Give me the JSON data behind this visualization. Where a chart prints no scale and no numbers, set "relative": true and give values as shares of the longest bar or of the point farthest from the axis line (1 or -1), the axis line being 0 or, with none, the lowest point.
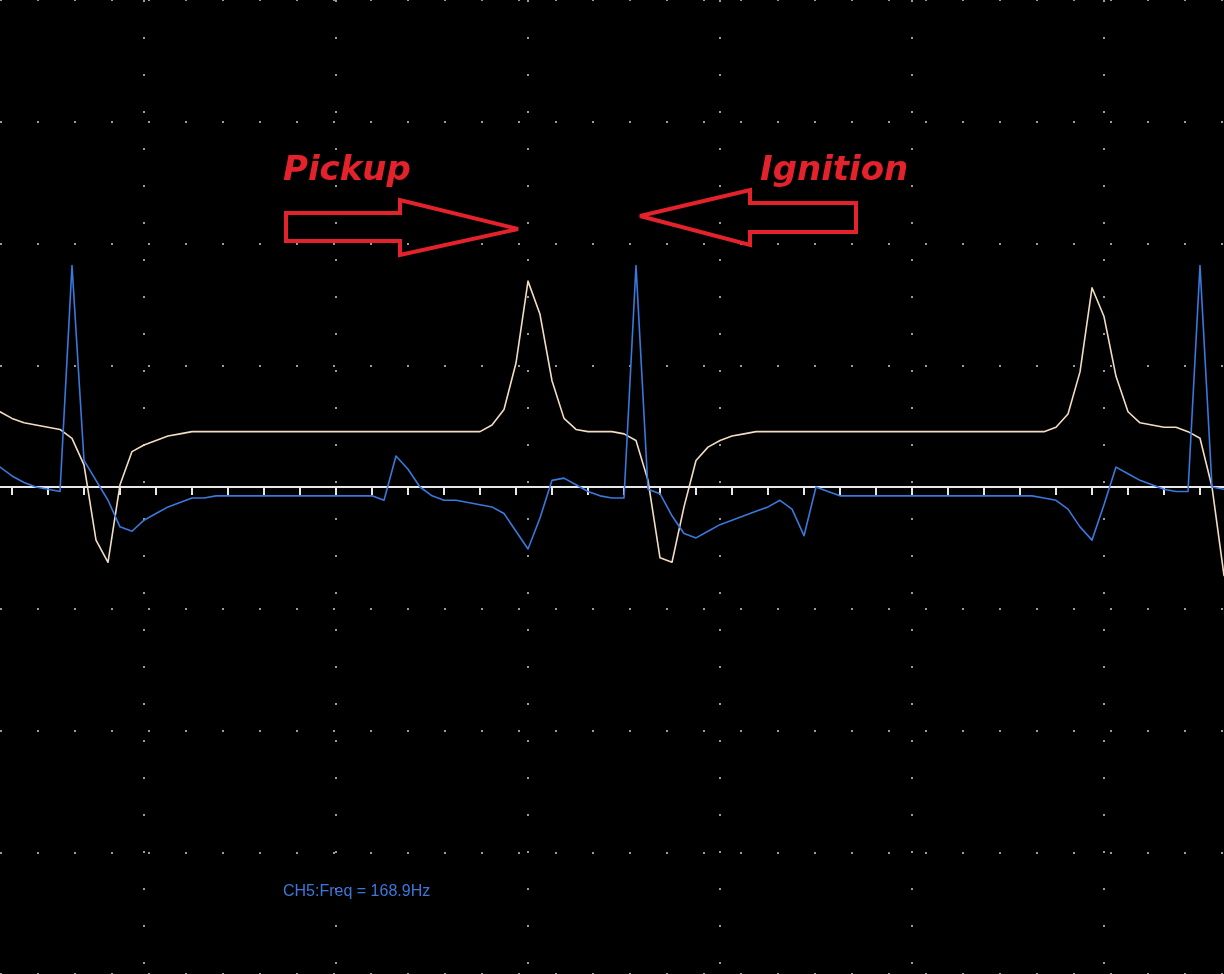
{
  "chart_data": {
    "type": "line",
    "relative": true,
    "grid": true,
    "categories": [
      null,
      null,
      null,
      null,
      null,
      null,
      null,
      null,
      null,
      null,
      null,
      null,
      null,
      null,
      null,
      null,
      null,
      null,
      null,
      null,
      null,
      null,
      null,
      null,
      null,
      null,
      null,
      null,
      null,
      null,
      null,
      null,
      null,
      null,
      null,
      null,
      null,
      null,
      null,
      null,
      null,
      null,
      null,
      null,
      null,
      null,
      null,
      null,
      null,
      null,
      null,
      null,
      null,
      null,
      null,
      null,
      null,
      null,
      null,
      null,
      null,
      null,
      null,
      null,
      null,
      null,
      null,
      null,
      null,
      null,
      null,
      null,
      null,
      null,
      null,
      null,
      null,
      null,
      null,
      null,
      null,
      null,
      null,
      null,
      null,
      null,
      null,
      null,
      null,
      null,
      null,
      null,
      null,
      null,
      null,
      null,
      null,
      null,
      null,
      null,
      null,
      null,
      null
    ],
    "series": [
      {
        "color": "#f2dcc4",
        "values": [
          0.34,
          0.31,
          0.29,
          0.28,
          0.27,
          0.26,
          0.22,
          0.1,
          -0.24,
          -0.34,
          0.01,
          0.16,
          0.19,
          0.21,
          0.23,
          0.24,
          0.25,
          0.25,
          0.25,
          0.25,
          0.25,
          0.25,
          0.25,
          0.25,
          0.25,
          0.25,
          0.25,
          0.25,
          0.25,
          0.25,
          0.25,
          0.25,
          0.25,
          0.25,
          0.25,
          0.25,
          0.25,
          0.25,
          0.25,
          0.25,
          0.25,
          0.28,
          0.35,
          0.56,
          0.93,
          0.78,
          0.48,
          0.31,
          0.26,
          0.25,
          0.25,
          0.25,
          0.24,
          0.21,
          0.03,
          -0.32,
          -0.34,
          -0.09,
          0.12,
          0.18,
          0.21,
          0.23,
          0.24,
          0.25,
          0.25,
          0.25,
          0.25,
          0.25,
          0.25,
          0.25,
          0.25,
          0.25,
          0.25,
          0.25,
          0.25,
          0.25,
          0.25,
          0.25,
          0.25,
          0.25,
          0.25,
          0.25,
          0.25,
          0.25,
          0.25,
          0.25,
          0.25,
          0.25,
          0.27,
          0.33,
          0.52,
          0.9,
          0.77,
          0.5,
          0.34,
          0.29,
          0.28,
          0.27,
          0.27,
          0.25,
          0.22,
          0.0,
          -0.4
        ]
      },
      {
        "color": "#3a78dc",
        "values": [
          0.09,
          0.05,
          0.02,
          0.0,
          -0.01,
          -0.02,
          1.0,
          0.12,
          0.03,
          -0.06,
          -0.18,
          -0.2,
          -0.15,
          -0.12,
          -0.09,
          -0.07,
          -0.05,
          -0.05,
          -0.04,
          -0.04,
          -0.04,
          -0.04,
          -0.04,
          -0.04,
          -0.04,
          -0.04,
          -0.04,
          -0.04,
          -0.04,
          -0.04,
          -0.04,
          -0.04,
          -0.06,
          0.14,
          0.08,
          0.0,
          -0.04,
          -0.06,
          -0.06,
          -0.07,
          -0.08,
          -0.09,
          -0.12,
          -0.2,
          -0.28,
          -0.14,
          0.03,
          0.04,
          0.01,
          -0.02,
          -0.04,
          -0.05,
          -0.05,
          1.0,
          -0.01,
          -0.03,
          -0.13,
          -0.21,
          -0.23,
          -0.2,
          -0.17,
          -0.15,
          -0.13,
          -0.11,
          -0.09,
          -0.06,
          -0.1,
          -0.22,
          0.0,
          -0.02,
          -0.04,
          -0.04,
          -0.04,
          -0.04,
          -0.04,
          -0.04,
          -0.04,
          -0.04,
          -0.04,
          -0.04,
          -0.04,
          -0.04,
          -0.04,
          -0.04,
          -0.04,
          -0.04,
          -0.04,
          -0.05,
          -0.06,
          -0.1,
          -0.18,
          -0.24,
          -0.08,
          0.09,
          0.06,
          0.03,
          0.01,
          -0.01,
          -0.02,
          -0.02,
          1.0,
          0.0,
          -0.01
        ]
      }
    ],
    "annotations": [
      "Pickup",
      "Ignition",
      "CH5:Freq = 168.9Hz"
    ]
  }
}
